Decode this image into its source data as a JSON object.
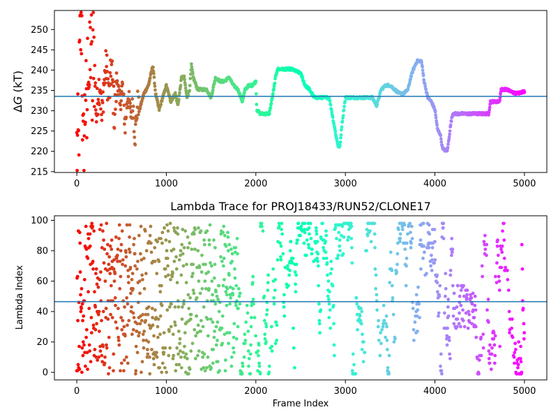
{
  "chart_data": [
    {
      "type": "scatter",
      "title": "",
      "xlabel": "",
      "ylabel": "ΔG (kT)",
      "ylabel_main": "Δ",
      "ylabel_italic": "G",
      "ylabel_unit": " (kT)",
      "xlim": [
        -250,
        5250
      ],
      "ylim": [
        214.5,
        254.5
      ],
      "xticks": [
        0,
        1000,
        2000,
        3000,
        4000,
        5000
      ],
      "yticks": [
        215,
        220,
        225,
        230,
        235,
        240,
        245,
        250
      ],
      "colormap": "rainbow (color by frame index)",
      "reference_line": {
        "y": 233.3,
        "color": "#1f77b4"
      },
      "trace_keypoints": [
        [
          0,
          220
        ],
        [
          20,
          220
        ],
        [
          25,
          230
        ],
        [
          30,
          240
        ],
        [
          45,
          250
        ],
        [
          55,
          253.5
        ],
        [
          70,
          215.5
        ],
        [
          85,
          225
        ],
        [
          100,
          236
        ],
        [
          110,
          222
        ],
        [
          125,
          247
        ],
        [
          140,
          236
        ],
        [
          160,
          248
        ],
        [
          175,
          229
        ],
        [
          185,
          251
        ],
        [
          200,
          239
        ],
        [
          220,
          228
        ],
        [
          240,
          235
        ],
        [
          260,
          237
        ],
        [
          280,
          227
        ],
        [
          300,
          236
        ],
        [
          330,
          241
        ],
        [
          360,
          233
        ],
        [
          390,
          241
        ],
        [
          420,
          228
        ],
        [
          450,
          238
        ],
        [
          480,
          231
        ],
        [
          510,
          236
        ],
        [
          540,
          226
        ],
        [
          570,
          234
        ],
        [
          600,
          229
        ],
        [
          630,
          231
        ],
        [
          650,
          223
        ],
        [
          680,
          232
        ],
        [
          700,
          230
        ],
        [
          750,
          234
        ],
        [
          800,
          236
        ],
        [
          850,
          241
        ],
        [
          880,
          234
        ],
        [
          920,
          230
        ],
        [
          960,
          233
        ],
        [
          1000,
          236
        ],
        [
          1050,
          232
        ],
        [
          1100,
          234
        ],
        [
          1130,
          231
        ],
        [
          1170,
          238
        ],
        [
          1200,
          238
        ],
        [
          1230,
          233
        ],
        [
          1260,
          235
        ],
        [
          1280,
          241
        ],
        [
          1300,
          238
        ],
        [
          1350,
          235
        ],
        [
          1400,
          235
        ],
        [
          1450,
          235
        ],
        [
          1500,
          233
        ],
        [
          1550,
          238
        ],
        [
          1600,
          237
        ],
        [
          1650,
          237
        ],
        [
          1700,
          238
        ],
        [
          1750,
          236
        ],
        [
          1800,
          235
        ],
        [
          1850,
          232
        ],
        [
          1880,
          235
        ],
        [
          1920,
          236
        ],
        [
          1960,
          236
        ],
        [
          2000,
          237
        ],
        [
          2010,
          230
        ],
        [
          2050,
          229
        ],
        [
          2100,
          229
        ],
        [
          2150,
          229
        ],
        [
          2200,
          235
        ],
        [
          2220,
          238
        ],
        [
          2240,
          240
        ],
        [
          2300,
          240
        ],
        [
          2400,
          240
        ],
        [
          2500,
          239
        ],
        [
          2550,
          236
        ],
        [
          2600,
          235
        ],
        [
          2650,
          233
        ],
        [
          2700,
          233
        ],
        [
          2750,
          233
        ],
        [
          2800,
          233
        ],
        [
          2820,
          233
        ],
        [
          2860,
          228
        ],
        [
          2900,
          223
        ],
        [
          2920,
          221
        ],
        [
          2940,
          221
        ],
        [
          2960,
          226
        ],
        [
          3000,
          233
        ],
        [
          3100,
          233
        ],
        [
          3200,
          233
        ],
        [
          3300,
          233
        ],
        [
          3350,
          231
        ],
        [
          3400,
          235
        ],
        [
          3450,
          236
        ],
        [
          3500,
          236
        ],
        [
          3550,
          235
        ],
        [
          3600,
          234
        ],
        [
          3650,
          234
        ],
        [
          3700,
          235
        ],
        [
          3730,
          238
        ],
        [
          3760,
          240
        ],
        [
          3800,
          242
        ],
        [
          3850,
          242
        ],
        [
          3880,
          237
        ],
        [
          3920,
          233
        ],
        [
          3960,
          232
        ],
        [
          4000,
          230
        ],
        [
          4030,
          225
        ],
        [
          4060,
          224
        ],
        [
          4080,
          221
        ],
        [
          4100,
          220
        ],
        [
          4140,
          220
        ],
        [
          4180,
          227
        ],
        [
          4200,
          229
        ],
        [
          4300,
          229
        ],
        [
          4400,
          229
        ],
        [
          4500,
          229
        ],
        [
          4600,
          229
        ],
        [
          4620,
          232
        ],
        [
          4700,
          232
        ],
        [
          4720,
          232
        ],
        [
          4740,
          235
        ],
        [
          4800,
          235
        ],
        [
          4900,
          234
        ],
        [
          5000,
          234.5
        ]
      ]
    },
    {
      "type": "scatter",
      "title": "Lambda Trace for PROJ18433/RUN52/CLONE17",
      "xlabel": "Frame Index",
      "ylabel": "Lambda Index",
      "xlim": [
        -250,
        5250
      ],
      "ylim": [
        -4,
        104
      ],
      "xticks": [
        0,
        1000,
        2000,
        3000,
        4000,
        5000
      ],
      "yticks": [
        0,
        20,
        40,
        60,
        80,
        100
      ],
      "colormap": "rainbow (color by frame index)",
      "reference_line": {
        "y": 47.5,
        "color": "#1f77b4"
      },
      "value_range": [
        0,
        99
      ],
      "dense_regions": [
        {
          "x_range": [
            3830,
            4000
          ],
          "y_range": [
            65,
            99
          ]
        },
        {
          "x_range": [
            2880,
            2980
          ],
          "y_range": [
            75,
            99
          ]
        },
        {
          "x_range": [
            4200,
            4450
          ],
          "y_range": [
            30,
            60
          ]
        }
      ]
    }
  ],
  "axes": {
    "top": {
      "ytick_labels": [
        "215",
        "220",
        "225",
        "230",
        "235",
        "240",
        "245",
        "250"
      ],
      "xtick_labels": [
        "0",
        "1000",
        "2000",
        "3000",
        "4000",
        "5000"
      ]
    },
    "bottom": {
      "ytick_labels": [
        "0",
        "20",
        "40",
        "60",
        "80",
        "100"
      ],
      "xtick_labels": [
        "0",
        "1000",
        "2000",
        "3000",
        "4000",
        "5000"
      ]
    }
  }
}
